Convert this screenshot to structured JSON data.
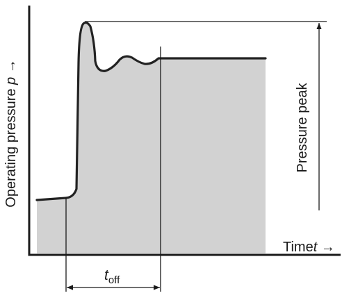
{
  "diagram": {
    "y_axis_label": {
      "prefix": "Operating pressure ",
      "symbol": "p",
      "arrow": " →"
    },
    "x_axis_label": {
      "prefix": "Time",
      "symbol": "t",
      "arrow": " →"
    },
    "peak_label": "Pressure peak",
    "toff_label": {
      "base": "t",
      "sub": "off"
    },
    "colors": {
      "area_fill": "#d2d2d2",
      "curve": "#222222",
      "axes": "#1a1a1a",
      "lines": "#1a1a1a",
      "background": "#ffffff"
    }
  }
}
